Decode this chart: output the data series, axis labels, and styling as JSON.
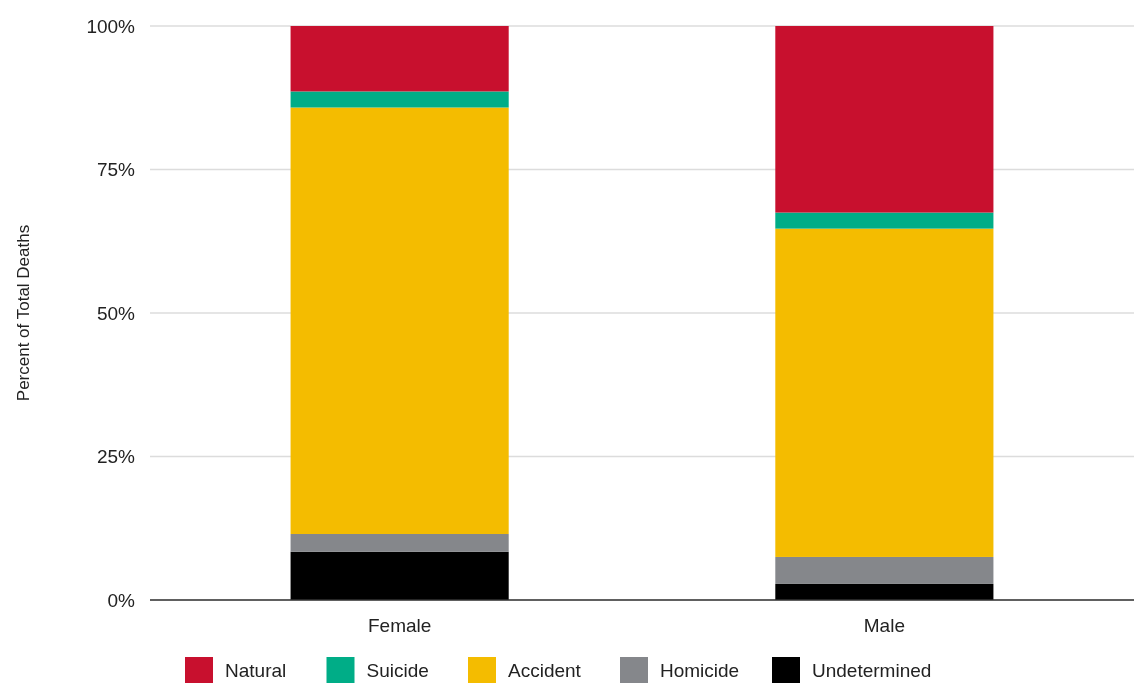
{
  "chart_data": {
    "type": "bar",
    "stacked": true,
    "ylabel": "Percent of Total Deaths",
    "categories": [
      "Female",
      "Male"
    ],
    "series": [
      {
        "name": "Undetermined",
        "color": "#000000",
        "values": [
          8.4,
          2.8
        ]
      },
      {
        "name": "Homicide",
        "color": "#85878b",
        "values": [
          3.1,
          4.7
        ]
      },
      {
        "name": "Accident",
        "color": "#f4bc00",
        "values": [
          74.3,
          57.2
        ]
      },
      {
        "name": "Suicide",
        "color": "#00ad87",
        "values": [
          2.8,
          2.8
        ]
      },
      {
        "name": "Natural",
        "color": "#c8102e",
        "values": [
          11.4,
          32.5
        ]
      }
    ],
    "ylim": [
      0,
      100
    ],
    "yticks": [
      {
        "value": 0,
        "label": "0%"
      },
      {
        "value": 25,
        "label": "25%"
      },
      {
        "value": 50,
        "label": "50%"
      },
      {
        "value": 75,
        "label": "75%"
      },
      {
        "value": 100,
        "label": "100%"
      }
    ],
    "grid": "y",
    "legend": "bottom"
  }
}
